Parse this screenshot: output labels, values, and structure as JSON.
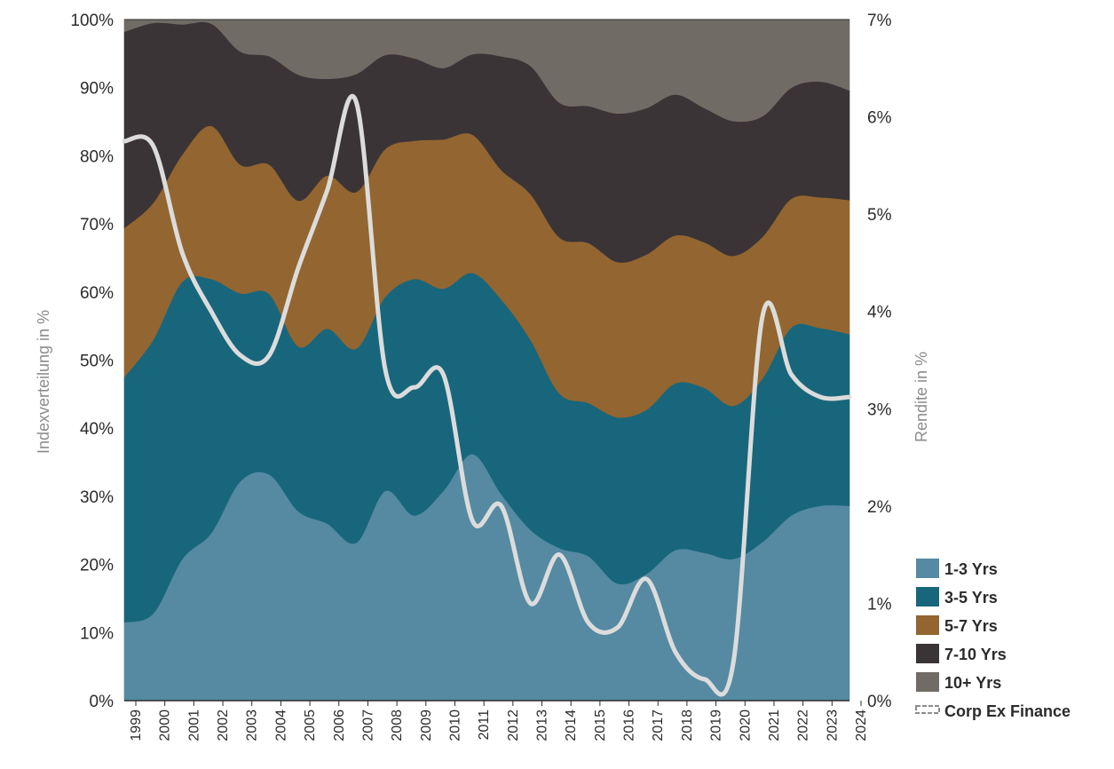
{
  "chart_data": {
    "type": "area",
    "stacked": true,
    "x": [
      "1999",
      "2000",
      "2001",
      "2002",
      "2003",
      "2004",
      "2005",
      "2006",
      "2007",
      "2008",
      "2009",
      "2010",
      "2011",
      "2012",
      "2013",
      "2014",
      "2015",
      "2016",
      "2017",
      "2018",
      "2019",
      "2020",
      "2021",
      "2022",
      "2023",
      "2024"
    ],
    "y_left": {
      "label": "Indexverteilung in %",
      "range": [
        0,
        100
      ],
      "ticks": [
        "0%",
        "10%",
        "20%",
        "30%",
        "40%",
        "50%",
        "60%",
        "70%",
        "80%",
        "90%",
        "100%"
      ]
    },
    "y_right": {
      "label": "Rendite in %",
      "range": [
        0,
        7
      ],
      "ticks": [
        "0%",
        "1%",
        "2%",
        "3%",
        "4%",
        "5%",
        "6%",
        "7%"
      ]
    },
    "series": [
      {
        "name": "1-3 Yrs",
        "color": "#558aa2",
        "values": [
          11.5,
          12.8,
          20.8,
          24.6,
          32.2,
          33.2,
          27.8,
          26.0,
          23.2,
          30.8,
          27.2,
          30.8,
          36.2,
          30.3,
          25.1,
          22.4,
          21.2,
          17.2,
          18.6,
          22.1,
          21.7,
          20.8,
          23.3,
          27.2,
          28.6,
          28.6
        ]
      },
      {
        "name": "3-5  Yrs",
        "color": "#18667c",
        "values": [
          36.0,
          40.2,
          40.7,
          37.3,
          27.6,
          26.5,
          24.2,
          28.6,
          28.5,
          28.5,
          34.7,
          29.7,
          26.6,
          28.6,
          27.9,
          22.7,
          22.5,
          24.4,
          24.1,
          24.5,
          24.2,
          22.5,
          24.0,
          27.6,
          26.1,
          25.2
        ]
      },
      {
        "name": "5-7 Yrs",
        "color": "#936530",
        "values": [
          21.9,
          20.1,
          18.7,
          22.5,
          18.9,
          19.0,
          21.4,
          22.5,
          23.0,
          21.7,
          20.3,
          21.9,
          20.3,
          19.0,
          21.4,
          22.9,
          23.5,
          22.8,
          22.8,
          21.7,
          21.4,
          22.0,
          20.8,
          18.9,
          19.2,
          19.7
        ]
      },
      {
        "name": "7-10 Yrs",
        "color": "#3b3436",
        "values": [
          28.8,
          26.4,
          19.1,
          15.0,
          16.6,
          15.9,
          18.5,
          14.2,
          17.3,
          13.8,
          12.1,
          10.5,
          11.8,
          16.7,
          18.8,
          19.8,
          20.1,
          21.8,
          21.5,
          20.7,
          19.7,
          19.8,
          17.7,
          16.3,
          17.0,
          16.1
        ]
      },
      {
        "name": "10+ Yrs",
        "color": "#716b66",
        "values": [
          1.8,
          0.5,
          0.7,
          0.6,
          4.7,
          5.4,
          8.1,
          8.7,
          8.0,
          5.2,
          5.7,
          7.1,
          5.1,
          5.4,
          6.8,
          12.2,
          12.7,
          13.8,
          13.0,
          11.0,
          13.0,
          14.9,
          14.2,
          10.0,
          9.1,
          10.4
        ]
      }
    ],
    "line": {
      "name": "Corp Ex Finance",
      "color": "#dcdcdc",
      "values": [
        5.75,
        5.7,
        4.6,
        4.0,
        3.55,
        3.55,
        4.45,
        5.25,
        6.15,
        3.4,
        3.22,
        3.35,
        1.85,
        2.0,
        1.0,
        1.5,
        0.8,
        0.75,
        1.25,
        0.5,
        0.22,
        0.4,
        3.95,
        3.35,
        3.12,
        3.12
      ]
    },
    "grid": false,
    "legend_position": "bottom-right",
    "legend": [
      {
        "label": "1-3 Yrs",
        "color": "#558aa2"
      },
      {
        "label": "3-5  Yrs",
        "color": "#18667c"
      },
      {
        "label": "5-7 Yrs",
        "color": "#936530"
      },
      {
        "label": "7-10 Yrs",
        "color": "#3b3436"
      },
      {
        "label": "10+ Yrs",
        "color": "#716b66"
      },
      {
        "label": "Corp Ex Finance",
        "color": "#dcdcdc"
      }
    ]
  }
}
